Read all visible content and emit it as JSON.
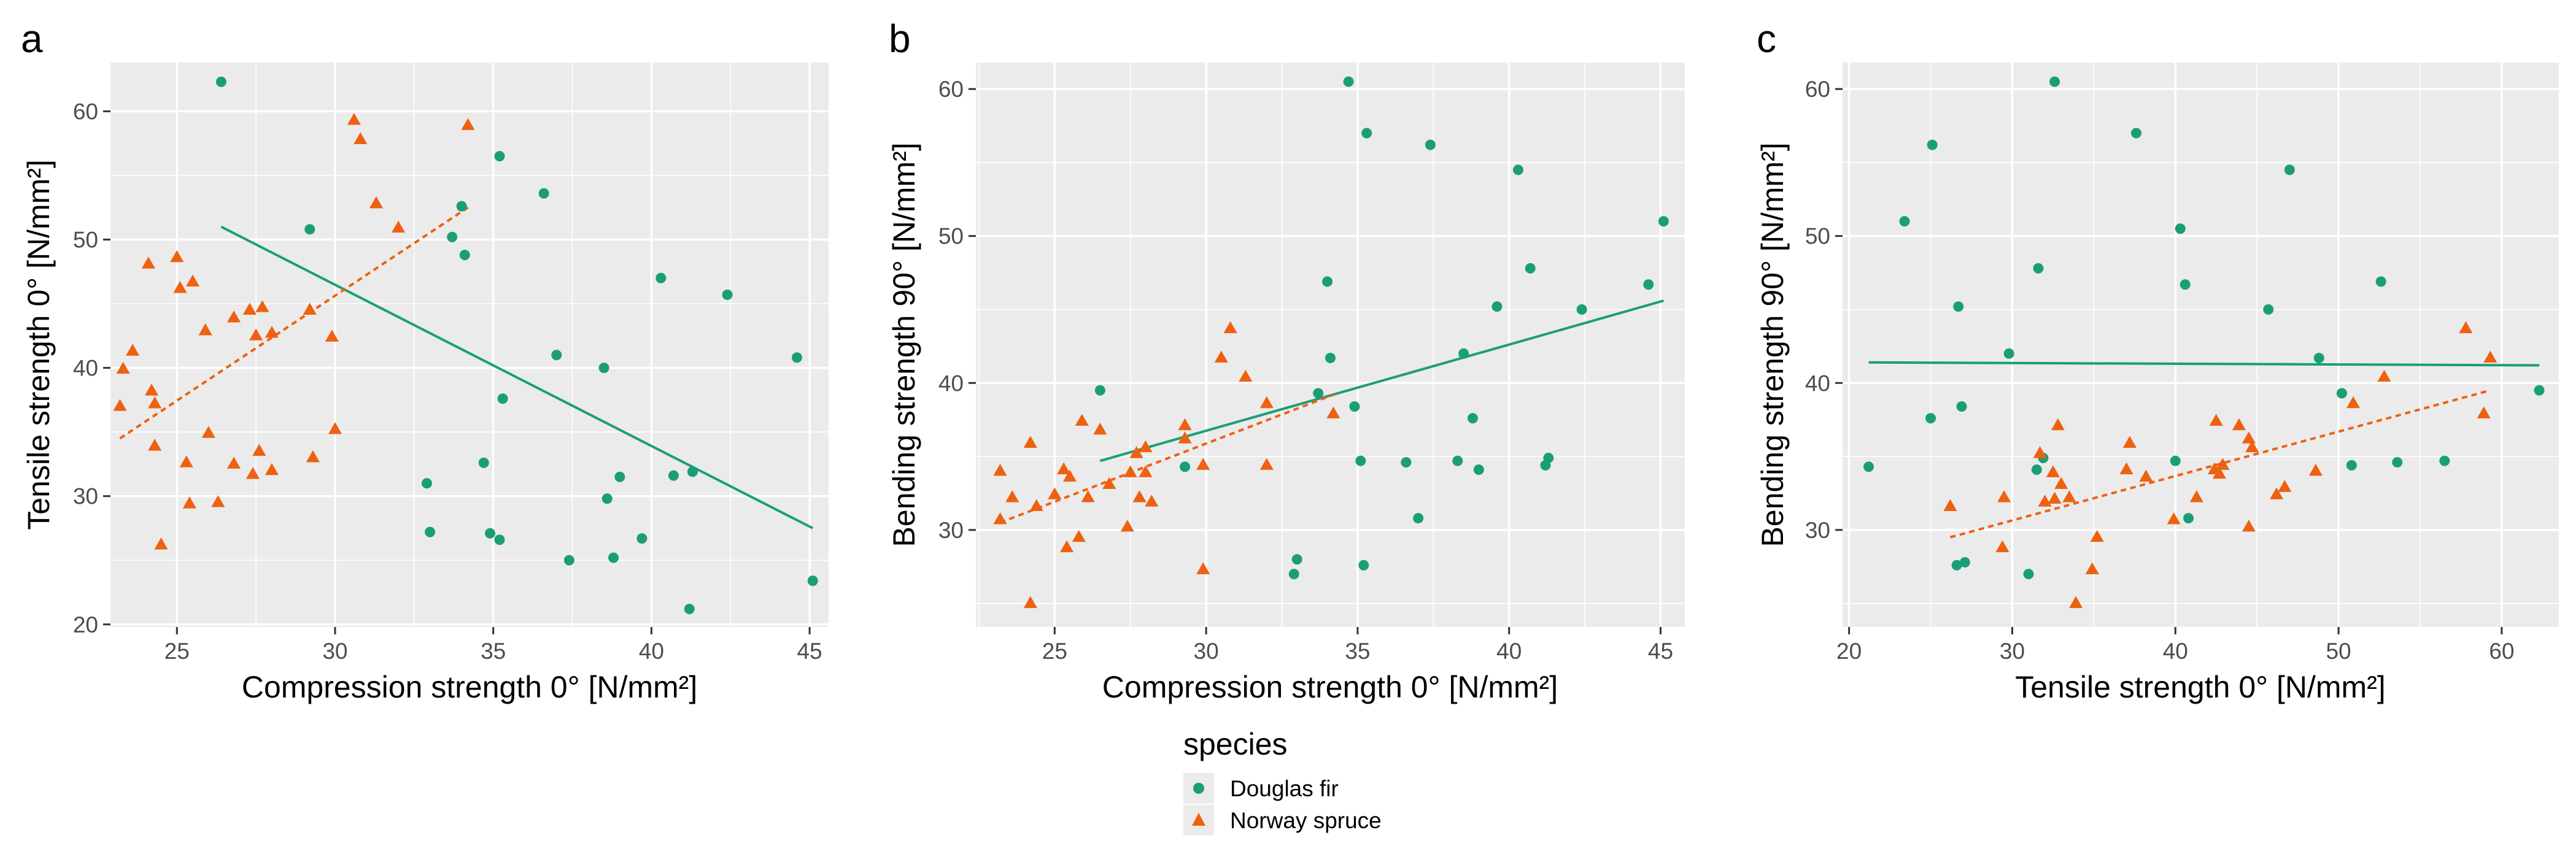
{
  "colors": {
    "douglas": "#1b9e77",
    "spruce": "#ee6110"
  },
  "legend": {
    "title": "species",
    "items": [
      {
        "label": "Douglas fir",
        "shape": "circle",
        "color": "#1b9e77"
      },
      {
        "label": "Norway spruce",
        "shape": "triangle",
        "color": "#ee6110"
      }
    ]
  },
  "chart_data": [
    {
      "tag": "a",
      "type": "scatter",
      "title": "",
      "xlabel": "Compression strength 0° [N/mm²]",
      "ylabel": "Tensile strength 0° [N/mm²]",
      "xlim": [
        22.9,
        45.6
      ],
      "ylim": [
        19.8,
        63.8
      ],
      "xticks": [
        25,
        30,
        35,
        40,
        45
      ],
      "yticks": [
        20,
        30,
        40,
        50,
        60
      ],
      "series": [
        {
          "name": "Douglas fir",
          "shape": "circle",
          "points": [
            [
              26.4,
              62.3
            ],
            [
              29.2,
              50.8
            ],
            [
              33.7,
              50.2
            ],
            [
              34.0,
              52.6
            ],
            [
              34.1,
              48.8
            ],
            [
              35.2,
              56.5
            ],
            [
              36.6,
              53.6
            ],
            [
              37.0,
              41.0
            ],
            [
              38.5,
              40.0
            ],
            [
              40.3,
              47.0
            ],
            [
              42.4,
              45.7
            ],
            [
              44.6,
              40.8
            ],
            [
              32.9,
              31.0
            ],
            [
              33.0,
              27.2
            ],
            [
              34.7,
              32.6
            ],
            [
              34.9,
              27.1
            ],
            [
              35.2,
              26.6
            ],
            [
              35.3,
              37.6
            ],
            [
              37.4,
              25.0
            ],
            [
              38.6,
              29.8
            ],
            [
              38.8,
              25.2
            ],
            [
              39.0,
              31.5
            ],
            [
              39.7,
              26.7
            ],
            [
              40.7,
              31.6
            ],
            [
              41.3,
              31.9
            ],
            [
              41.2,
              21.2
            ],
            [
              45.1,
              23.4
            ]
          ]
        },
        {
          "name": "Norway spruce",
          "shape": "triangle",
          "points": [
            [
              23.2,
              37.0
            ],
            [
              23.3,
              39.9
            ],
            [
              23.6,
              41.3
            ],
            [
              24.1,
              48.1
            ],
            [
              24.2,
              38.2
            ],
            [
              24.3,
              37.2
            ],
            [
              24.3,
              33.9
            ],
            [
              24.5,
              26.2
            ],
            [
              25.0,
              48.6
            ],
            [
              25.1,
              46.2
            ],
            [
              25.3,
              32.6
            ],
            [
              25.4,
              29.4
            ],
            [
              25.5,
              46.7
            ],
            [
              25.9,
              42.9
            ],
            [
              26.0,
              34.9
            ],
            [
              26.3,
              29.5
            ],
            [
              26.8,
              32.5
            ],
            [
              26.8,
              43.9
            ],
            [
              27.3,
              44.5
            ],
            [
              27.4,
              31.7
            ],
            [
              27.5,
              42.5
            ],
            [
              27.6,
              33.5
            ],
            [
              27.7,
              44.7
            ],
            [
              28.0,
              32.0
            ],
            [
              28.0,
              42.7
            ],
            [
              29.2,
              44.5
            ],
            [
              29.3,
              33.0
            ],
            [
              29.9,
              42.4
            ],
            [
              30.0,
              35.2
            ],
            [
              30.6,
              59.3
            ],
            [
              30.8,
              57.8
            ],
            [
              31.3,
              52.8
            ],
            [
              32.0,
              50.9
            ],
            [
              34.2,
              58.9
            ]
          ]
        }
      ],
      "trendlines": [
        {
          "name": "Douglas fir",
          "style": "solid",
          "x": [
            26.4,
            45.1
          ],
          "y": [
            51.0,
            27.5
          ]
        },
        {
          "name": "Norway spruce",
          "style": "dashed",
          "x": [
            23.2,
            34.2
          ],
          "y": [
            34.5,
            52.5
          ]
        }
      ]
    },
    {
      "tag": "b",
      "type": "scatter",
      "title": "",
      "xlabel": "Compression strength 0° [N/mm²]",
      "ylabel": "Bending strength 90° [N/mm²]",
      "xlim": [
        22.4,
        45.8
      ],
      "ylim": [
        23.4,
        61.8
      ],
      "xticks": [
        25,
        30,
        35,
        40,
        45
      ],
      "yticks": [
        30,
        40,
        50,
        60
      ],
      "series": [
        {
          "name": "Douglas fir",
          "shape": "circle",
          "points": [
            [
              26.5,
              39.5
            ],
            [
              29.3,
              34.3
            ],
            [
              32.9,
              27.0
            ],
            [
              33.0,
              28.0
            ],
            [
              33.7,
              39.3
            ],
            [
              34.0,
              46.9
            ],
            [
              34.1,
              41.7
            ],
            [
              34.7,
              60.5
            ],
            [
              34.9,
              38.4
            ],
            [
              35.1,
              34.7
            ],
            [
              35.2,
              27.6
            ],
            [
              35.3,
              57.0
            ],
            [
              36.6,
              34.6
            ],
            [
              37.0,
              30.8
            ],
            [
              37.4,
              56.2
            ],
            [
              38.3,
              34.7
            ],
            [
              38.5,
              42.0
            ],
            [
              38.8,
              37.6
            ],
            [
              39.0,
              34.1
            ],
            [
              39.6,
              45.2
            ],
            [
              40.3,
              54.5
            ],
            [
              40.7,
              47.8
            ],
            [
              41.2,
              34.4
            ],
            [
              41.3,
              34.9
            ],
            [
              42.4,
              45.0
            ],
            [
              44.6,
              46.7
            ],
            [
              45.1,
              51.0
            ]
          ]
        },
        {
          "name": "Norway spruce",
          "shape": "triangle",
          "points": [
            [
              23.2,
              30.7
            ],
            [
              23.2,
              34.0
            ],
            [
              23.6,
              32.2
            ],
            [
              24.2,
              25.0
            ],
            [
              24.2,
              35.9
            ],
            [
              24.4,
              31.6
            ],
            [
              25.0,
              32.4
            ],
            [
              25.3,
              34.1
            ],
            [
              25.4,
              28.8
            ],
            [
              25.5,
              33.6
            ],
            [
              25.8,
              29.5
            ],
            [
              25.9,
              37.4
            ],
            [
              26.1,
              32.2
            ],
            [
              26.5,
              36.8
            ],
            [
              26.8,
              33.1
            ],
            [
              27.4,
              30.2
            ],
            [
              27.5,
              33.9
            ],
            [
              27.7,
              35.2
            ],
            [
              27.8,
              32.2
            ],
            [
              28.0,
              33.9
            ],
            [
              28.0,
              35.6
            ],
            [
              28.2,
              31.9
            ],
            [
              29.3,
              37.1
            ],
            [
              29.3,
              36.2
            ],
            [
              29.9,
              27.3
            ],
            [
              29.9,
              34.4
            ],
            [
              30.5,
              41.7
            ],
            [
              30.8,
              43.7
            ],
            [
              31.3,
              40.4
            ],
            [
              32.0,
              38.6
            ],
            [
              32.0,
              34.4
            ],
            [
              34.2,
              37.9
            ]
          ]
        }
      ],
      "trendlines": [
        {
          "name": "Douglas fir",
          "style": "solid",
          "x": [
            26.5,
            45.1
          ],
          "y": [
            34.7,
            45.6
          ]
        },
        {
          "name": "Norway spruce",
          "style": "dashed",
          "x": [
            23.2,
            34.2
          ],
          "y": [
            30.5,
            39.2
          ]
        }
      ]
    },
    {
      "tag": "c",
      "type": "scatter",
      "title": "",
      "xlabel": "Tensile strength 0° [N/mm²]",
      "ylabel": "Bending strength 90° [N/mm²]",
      "xlim": [
        19.6,
        63.5
      ],
      "ylim": [
        23.4,
        61.8
      ],
      "xticks": [
        20,
        30,
        40,
        50,
        60
      ],
      "yticks": [
        30,
        40,
        50,
        60
      ],
      "series": [
        {
          "name": "Douglas fir",
          "shape": "circle",
          "points": [
            [
              21.2,
              34.3
            ],
            [
              23.4,
              51.0
            ],
            [
              25.0,
              37.6
            ],
            [
              25.1,
              56.2
            ],
            [
              26.6,
              27.6
            ],
            [
              26.7,
              45.2
            ],
            [
              26.9,
              38.4
            ],
            [
              27.1,
              27.8
            ],
            [
              29.8,
              42.0
            ],
            [
              31.0,
              27.0
            ],
            [
              31.5,
              34.1
            ],
            [
              31.6,
              47.8
            ],
            [
              31.9,
              34.9
            ],
            [
              32.6,
              60.5
            ],
            [
              37.6,
              57.0
            ],
            [
              40.0,
              34.7
            ],
            [
              40.3,
              50.5
            ],
            [
              40.6,
              46.7
            ],
            [
              40.8,
              30.8
            ],
            [
              45.7,
              45.0
            ],
            [
              47.0,
              54.5
            ],
            [
              48.8,
              41.7
            ],
            [
              50.2,
              39.3
            ],
            [
              50.8,
              34.4
            ],
            [
              52.6,
              46.9
            ],
            [
              53.6,
              34.6
            ],
            [
              56.5,
              34.7
            ],
            [
              62.3,
              39.5
            ]
          ]
        },
        {
          "name": "Norway spruce",
          "shape": "triangle",
          "points": [
            [
              26.2,
              31.6
            ],
            [
              29.4,
              28.8
            ],
            [
              29.5,
              32.2
            ],
            [
              31.7,
              35.2
            ],
            [
              32.0,
              31.9
            ],
            [
              32.5,
              33.9
            ],
            [
              32.6,
              32.1
            ],
            [
              32.8,
              37.1
            ],
            [
              33.0,
              33.1
            ],
            [
              33.5,
              32.2
            ],
            [
              33.9,
              25.0
            ],
            [
              34.9,
              27.3
            ],
            [
              35.2,
              29.5
            ],
            [
              37.0,
              34.1
            ],
            [
              37.2,
              35.9
            ],
            [
              38.2,
              33.6
            ],
            [
              39.9,
              30.7
            ],
            [
              41.3,
              32.2
            ],
            [
              42.4,
              34.1
            ],
            [
              42.5,
              37.4
            ],
            [
              42.7,
              33.8
            ],
            [
              42.9,
              34.4
            ],
            [
              43.9,
              37.1
            ],
            [
              44.5,
              36.2
            ],
            [
              44.5,
              30.2
            ],
            [
              44.7,
              35.6
            ],
            [
              46.2,
              32.4
            ],
            [
              46.7,
              32.9
            ],
            [
              48.6,
              34.0
            ],
            [
              50.9,
              38.6
            ],
            [
              52.8,
              40.4
            ],
            [
              57.8,
              43.7
            ],
            [
              58.9,
              37.9
            ],
            [
              59.3,
              41.7
            ]
          ]
        }
      ],
      "trendlines": [
        {
          "name": "Douglas fir",
          "style": "solid",
          "x": [
            21.2,
            62.3
          ],
          "y": [
            41.4,
            41.2
          ]
        },
        {
          "name": "Norway spruce",
          "style": "dashed",
          "x": [
            26.2,
            59.3
          ],
          "y": [
            29.5,
            39.5
          ]
        }
      ]
    }
  ]
}
